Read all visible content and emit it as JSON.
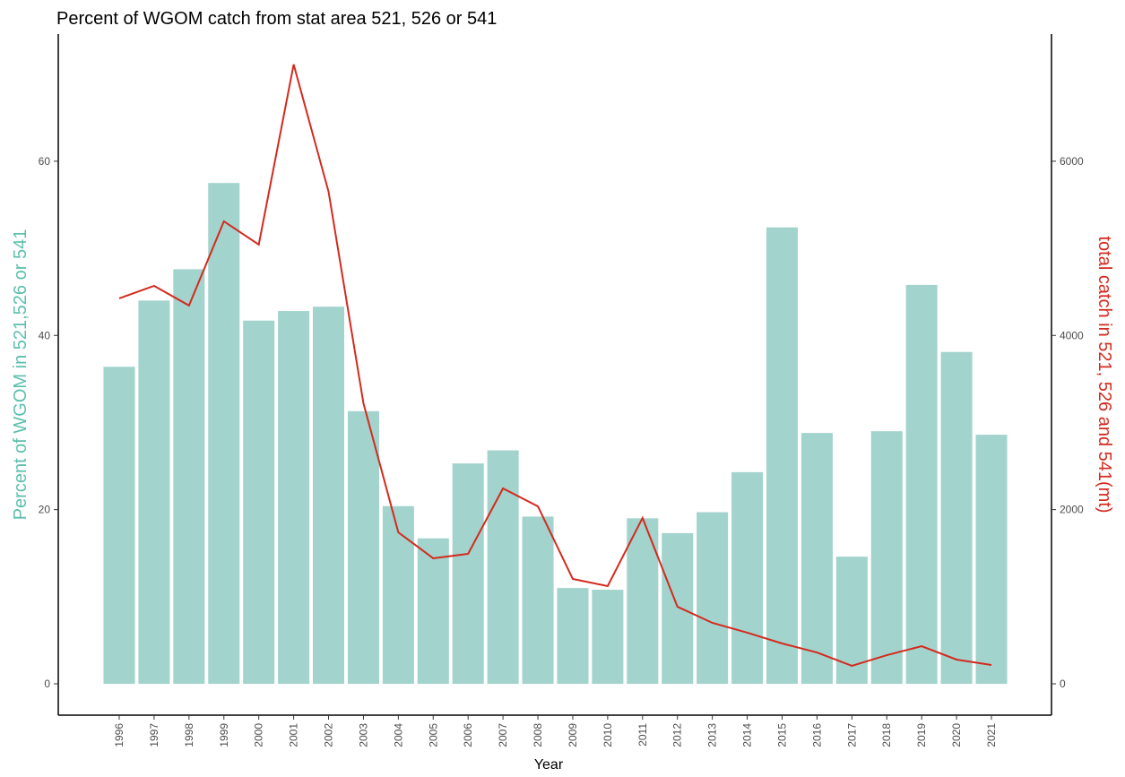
{
  "chart_data": {
    "type": "bar-line",
    "title": "Percent of WGOM catch from stat area 521, 526 or 541",
    "x_label": "Year",
    "y_label": "Percent of WGOM in 521,526 or 541",
    "y2_label": "total catch in 521, 526 and 541(mt)",
    "categories": [
      "1996",
      "1997",
      "1998",
      "1999",
      "2000",
      "2001",
      "2002",
      "2003",
      "2004",
      "2005",
      "2006",
      "2007",
      "2008",
      "2009",
      "2010",
      "2011",
      "2012",
      "2013",
      "2014",
      "2015",
      "2016",
      "2017",
      "2018",
      "2019",
      "2020",
      "2021"
    ],
    "series": [
      {
        "type": "bar",
        "color": "#a2d3cd",
        "values": [
          36.4,
          44.0,
          47.6,
          57.5,
          41.7,
          42.8,
          43.3,
          31.3,
          20.4,
          16.7,
          25.3,
          26.8,
          19.2,
          11.0,
          10.8,
          19.0,
          17.3,
          19.7,
          24.3,
          52.4,
          28.8,
          14.6,
          29.0,
          45.8,
          38.1,
          28.6
        ]
      },
      {
        "type": "line",
        "axis": "y2",
        "color": "#d42a1e",
        "values": [
          4425,
          4569,
          4343,
          5310,
          5043,
          7111,
          5650,
          3221,
          1739,
          1441,
          1492,
          2243,
          2038,
          1204,
          1122,
          1904,
          885,
          700,
          587,
          463,
          360,
          206,
          329,
          432,
          278,
          216
        ]
      }
    ],
    "ylim": [
      -3.6,
      74.6
    ],
    "yticks": [
      0,
      20,
      40,
      60
    ],
    "y2lim": [
      -360,
      7460
    ],
    "y2ticks": [
      0,
      2000,
      4000,
      6000
    ],
    "y_label_color": "#5cbfae",
    "y2_label_color": "#d42a1e"
  }
}
